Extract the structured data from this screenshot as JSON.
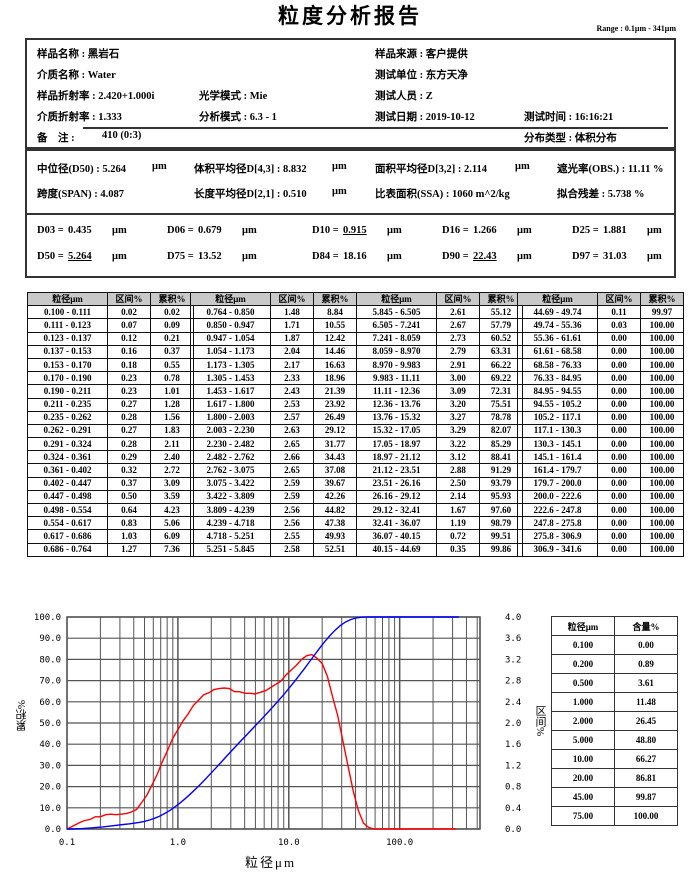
{
  "title": "粒度分析报告",
  "range": "Range : 0.1μm - 341μm",
  "info": {
    "sample_name": "样品名称 : 黑岩石",
    "medium_name": "介质名称 : Water",
    "sample_ri": "样品折射率 : 2.420+1.000i",
    "optical_mode": "光学模式 : Mie",
    "medium_ri": "介质折射率 : 1.333",
    "analysis_mode": "分析模式 : 6.3 - 1",
    "remark_label": "备　注 :",
    "remark_value": "410  (0:3)",
    "sample_source": "样品来源 : 客户提供",
    "test_unit": "测试单位 : 东方天净",
    "tester": "测试人员 : Z",
    "test_date": "测试日期 : 2019-10-12",
    "test_time": "测试时间 : 16:16:21",
    "dist_type": "分布类型 : 体积分布"
  },
  "stats": {
    "d50": "中位径(D50) : 5.264",
    "d43": "体积平均径D[4,3] : 8.832",
    "d32": "面积平均径D[3,2] : 2.114",
    "obs": "遮光率(OBS.) : 11.11 %",
    "span": "跨度(SPAN) : 4.087",
    "d21": "长度平均径D[2,1] : 0.510",
    "ssa": "比表面积(SSA) : 1060  m^2/kg",
    "residual": "拟合残差 : 5.738 %",
    "unit": "μm"
  },
  "percentiles": [
    {
      "label": "D03 =",
      "value": "0.435",
      "underline": false
    },
    {
      "label": "D06 =",
      "value": "0.679",
      "underline": false
    },
    {
      "label": "D10 =",
      "value": "0.915",
      "underline": true
    },
    {
      "label": "D16 =",
      "value": "1.266",
      "underline": false
    },
    {
      "label": "D25 =",
      "value": "1.881",
      "underline": false
    },
    {
      "label": "D50 =",
      "value": "5.264",
      "underline": true
    },
    {
      "label": "D75 =",
      "value": "13.52",
      "underline": false
    },
    {
      "label": "D84 =",
      "value": "18.16",
      "underline": false
    },
    {
      "label": "D90 =",
      "value": "22.43",
      "underline": true
    },
    {
      "label": "D97 =",
      "value": "31.03",
      "underline": false
    }
  ],
  "table": {
    "headers": [
      "粒径μm",
      "区间%",
      "累积%"
    ],
    "rows": [
      [
        "0.100 - 0.111",
        "0.02",
        "0.02"
      ],
      [
        "0.111 - 0.123",
        "0.07",
        "0.09"
      ],
      [
        "0.123 - 0.137",
        "0.12",
        "0.21"
      ],
      [
        "0.137 - 0.153",
        "0.16",
        "0.37"
      ],
      [
        "0.153 - 0.170",
        "0.18",
        "0.55"
      ],
      [
        "0.170 - 0.190",
        "0.23",
        "0.78"
      ],
      [
        "0.190 - 0.211",
        "0.23",
        "1.01"
      ],
      [
        "0.211 - 0.235",
        "0.27",
        "1.28"
      ],
      [
        "0.235 - 0.262",
        "0.28",
        "1.56"
      ],
      [
        "0.262 - 0.291",
        "0.27",
        "1.83"
      ],
      [
        "0.291 - 0.324",
        "0.28",
        "2.11"
      ],
      [
        "0.324 - 0.361",
        "0.29",
        "2.40"
      ],
      [
        "0.361 - 0.402",
        "0.32",
        "2.72"
      ],
      [
        "0.402 - 0.447",
        "0.37",
        "3.09"
      ],
      [
        "0.447 - 0.498",
        "0.50",
        "3.59"
      ],
      [
        "0.498 - 0.554",
        "0.64",
        "4.23"
      ],
      [
        "0.554 - 0.617",
        "0.83",
        "5.06"
      ],
      [
        "0.617 - 0.686",
        "1.03",
        "6.09"
      ],
      [
        "0.686 - 0.764",
        "1.27",
        "7.36"
      ],
      [
        "0.764 - 0.850",
        "1.48",
        "8.84"
      ],
      [
        "0.850 - 0.947",
        "1.71",
        "10.55"
      ],
      [
        "0.947 - 1.054",
        "1.87",
        "12.42"
      ],
      [
        "1.054 - 1.173",
        "2.04",
        "14.46"
      ],
      [
        "1.173 - 1.305",
        "2.17",
        "16.63"
      ],
      [
        "1.305 - 1.453",
        "2.33",
        "18.96"
      ],
      [
        "1.453 - 1.617",
        "2.43",
        "21.39"
      ],
      [
        "1.617 - 1.800",
        "2.53",
        "23.92"
      ],
      [
        "1.800 - 2.003",
        "2.57",
        "26.49"
      ],
      [
        "2.003 - 2.230",
        "2.63",
        "29.12"
      ],
      [
        "2.230 - 2.482",
        "2.65",
        "31.77"
      ],
      [
        "2.482 - 2.762",
        "2.66",
        "34.43"
      ],
      [
        "2.762 - 3.075",
        "2.65",
        "37.08"
      ],
      [
        "3.075 - 3.422",
        "2.59",
        "39.67"
      ],
      [
        "3.422 - 3.809",
        "2.59",
        "42.26"
      ],
      [
        "3.809 - 4.239",
        "2.56",
        "44.82"
      ],
      [
        "4.239 - 4.718",
        "2.56",
        "47.38"
      ],
      [
        "4.718 - 5.251",
        "2.55",
        "49.93"
      ],
      [
        "5.251 - 5.845",
        "2.58",
        "52.51"
      ],
      [
        "5.845 - 6.505",
        "2.61",
        "55.12"
      ],
      [
        "6.505 - 7.241",
        "2.67",
        "57.79"
      ],
      [
        "7.241 - 8.059",
        "2.73",
        "60.52"
      ],
      [
        "8.059 - 8.970",
        "2.79",
        "63.31"
      ],
      [
        "8.970 - 9.983",
        "2.91",
        "66.22"
      ],
      [
        "9.983 - 11.11",
        "3.00",
        "69.22"
      ],
      [
        "11.11 - 12.36",
        "3.09",
        "72.31"
      ],
      [
        "12.36 - 13.76",
        "3.20",
        "75.51"
      ],
      [
        "13.76 - 15.32",
        "3.27",
        "78.78"
      ],
      [
        "15.32 - 17.05",
        "3.29",
        "82.07"
      ],
      [
        "17.05 - 18.97",
        "3.22",
        "85.29"
      ],
      [
        "18.97 - 21.12",
        "3.12",
        "88.41"
      ],
      [
        "21.12 - 23.51",
        "2.88",
        "91.29"
      ],
      [
        "23.51 - 26.16",
        "2.50",
        "93.79"
      ],
      [
        "26.16 - 29.12",
        "2.14",
        "95.93"
      ],
      [
        "29.12 - 32.41",
        "1.67",
        "97.60"
      ],
      [
        "32.41 - 36.07",
        "1.19",
        "98.79"
      ],
      [
        "36.07 - 40.15",
        "0.72",
        "99.51"
      ],
      [
        "40.15 - 44.69",
        "0.35",
        "99.86"
      ],
      [
        "44.69 - 49.74",
        "0.11",
        "99.97"
      ],
      [
        "49.74 - 55.36",
        "0.03",
        "100.00"
      ],
      [
        "55.36 - 61.61",
        "0.00",
        "100.00"
      ],
      [
        "61.61 - 68.58",
        "0.00",
        "100.00"
      ],
      [
        "68.58 - 76.33",
        "0.00",
        "100.00"
      ],
      [
        "76.33 - 84.95",
        "0.00",
        "100.00"
      ],
      [
        "84.95 - 94.55",
        "0.00",
        "100.00"
      ],
      [
        "94.55 - 105.2",
        "0.00",
        "100.00"
      ],
      [
        "105.2 - 117.1",
        "0.00",
        "100.00"
      ],
      [
        "117.1 - 130.3",
        "0.00",
        "100.00"
      ],
      [
        "130.3 - 145.1",
        "0.00",
        "100.00"
      ],
      [
        "145.1 - 161.4",
        "0.00",
        "100.00"
      ],
      [
        "161.4 - 179.7",
        "0.00",
        "100.00"
      ],
      [
        "179.7 - 200.0",
        "0.00",
        "100.00"
      ],
      [
        "200.0 - 222.6",
        "0.00",
        "100.00"
      ],
      [
        "222.6 - 247.8",
        "0.00",
        "100.00"
      ],
      [
        "247.8 - 275.8",
        "0.00",
        "100.00"
      ],
      [
        "275.8 - 306.9",
        "0.00",
        "100.00"
      ],
      [
        "306.9 - 341.6",
        "0.00",
        "100.00"
      ]
    ]
  },
  "summary_table": {
    "headers": [
      "粒径μm",
      "含量%"
    ],
    "rows": [
      [
        "0.100",
        "0.00"
      ],
      [
        "0.200",
        "0.89"
      ],
      [
        "0.500",
        "3.61"
      ],
      [
        "1.000",
        "11.48"
      ],
      [
        "2.000",
        "26.45"
      ],
      [
        "5.000",
        "48.80"
      ],
      [
        "10.00",
        "66.27"
      ],
      [
        "20.00",
        "86.81"
      ],
      [
        "45.00",
        "99.87"
      ],
      [
        "75.00",
        "100.00"
      ]
    ]
  },
  "chart_data": {
    "type": "line",
    "xlabel": "粒径μm",
    "ylabel": "累积%",
    "y2label": "区间%",
    "x_scale": "log",
    "xlim": [
      0.1,
      530
    ],
    "ylim": [
      0,
      100
    ],
    "y2lim": [
      0,
      4.0
    ],
    "xticks": [
      "0.1",
      "1.0",
      "10.0",
      "100.0"
    ],
    "yticks": [
      "0.0",
      "10.0",
      "20.0",
      "30.0",
      "40.0",
      "50.0",
      "60.0",
      "70.0",
      "80.0",
      "90.0",
      "100.0"
    ],
    "y2ticks": [
      "0.0",
      "0.4",
      "0.8",
      "1.2",
      "1.6",
      "2.0",
      "2.4",
      "2.8",
      "3.2",
      "3.6",
      "4.0"
    ],
    "grid": true,
    "series": [
      {
        "role": "cumulative",
        "axis": "left",
        "color": "#0000ff",
        "source": "table.rows[*][2] vs bin upper bound"
      },
      {
        "role": "interval",
        "axis": "right",
        "color": "#ff0000",
        "source": "table.rows[*][1] vs bin upper bound"
      }
    ]
  }
}
